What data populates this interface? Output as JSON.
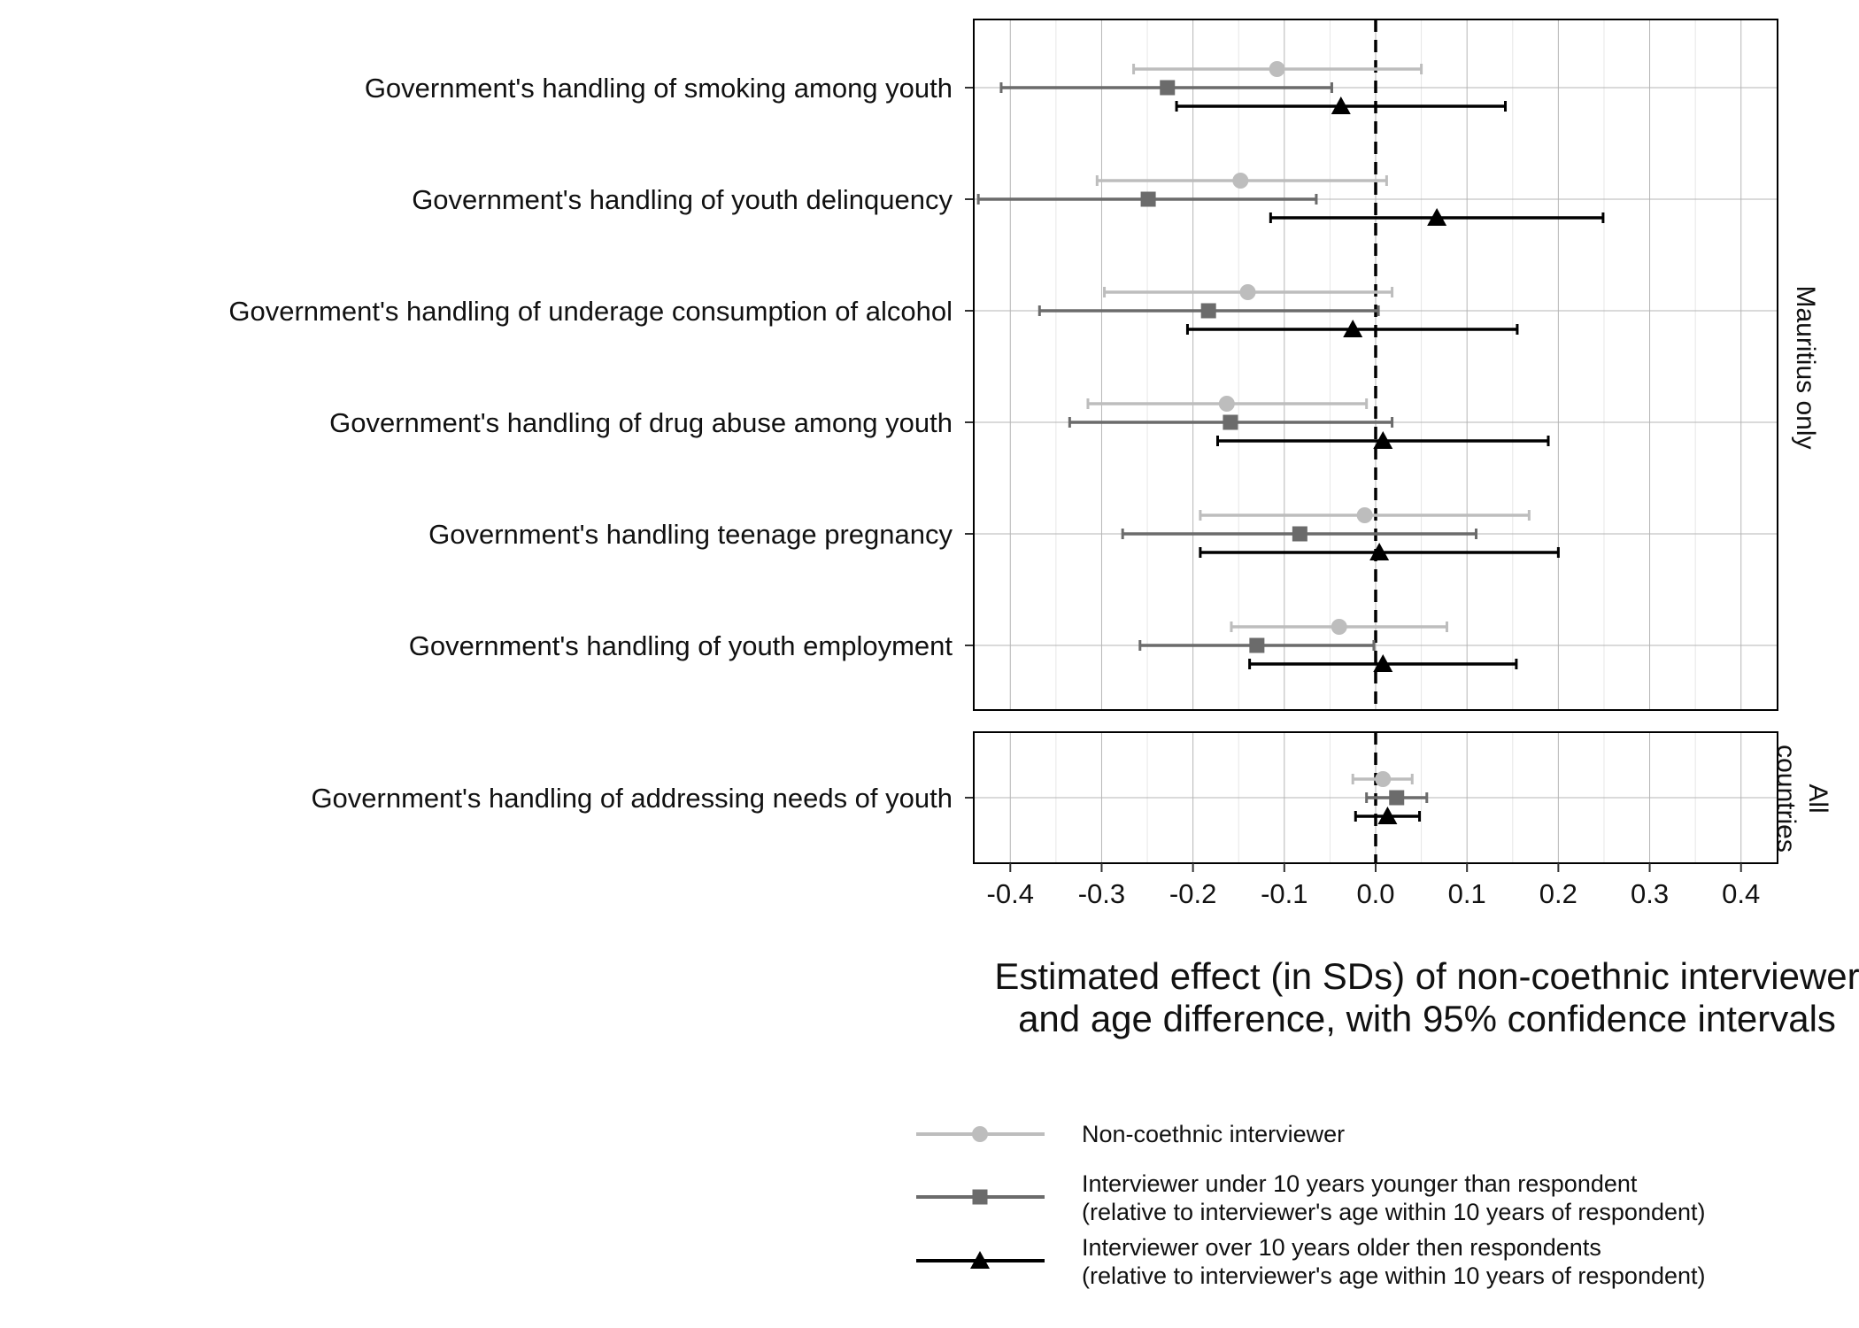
{
  "chart_data": {
    "type": "forest",
    "xlabel": [
      "Estimated effect (in SDs) of non-coethnic interviewer",
      "and age difference, with 95% confidence intervals"
    ],
    "xlim": [
      -0.44,
      0.44
    ],
    "xticks": [
      -0.4,
      -0.3,
      -0.2,
      -0.1,
      0.0,
      0.1,
      0.2,
      0.3,
      0.4
    ],
    "xtick_labels": [
      "-0.4",
      "-0.3",
      "-0.2",
      "-0.1",
      "0.0",
      "0.1",
      "0.2",
      "0.3",
      "0.4"
    ],
    "reference_line": 0,
    "grid": true,
    "legend_position": "bottom",
    "series": [
      {
        "name": "Non-coethnic interviewer",
        "name_line2": "",
        "marker": "circle",
        "color": "#bdbdbd"
      },
      {
        "name": "Interviewer under 10 years younger than respondent",
        "name_line2": "(relative to interviewer's age within 10 years of respondent)",
        "marker": "square",
        "color": "#6b6b6b"
      },
      {
        "name": "Interviewer over 10 years older then respondents",
        "name_line2": "(relative to interviewer's age within 10 years of respondent)",
        "marker": "triangle",
        "color": "#000000"
      }
    ],
    "panels": [
      {
        "strip": [
          "Mauritius only"
        ],
        "rows": [
          {
            "label": "Government's handling of smoking among youth",
            "estimates": [
              {
                "est": -0.108,
                "lo": -0.265,
                "hi": 0.05
              },
              {
                "est": -0.228,
                "lo": -0.41,
                "hi": -0.048
              },
              {
                "est": -0.038,
                "lo": -0.218,
                "hi": 0.142
              }
            ]
          },
          {
            "label": "Government's handling of youth delinquency",
            "estimates": [
              {
                "est": -0.148,
                "lo": -0.305,
                "hi": 0.012
              },
              {
                "est": -0.249,
                "lo": -0.435,
                "hi": -0.065
              },
              {
                "est": 0.067,
                "lo": -0.115,
                "hi": 0.249
              }
            ]
          },
          {
            "label": "Government's handling of underage consumption of alcohol",
            "estimates": [
              {
                "est": -0.14,
                "lo": -0.297,
                "hi": 0.018
              },
              {
                "est": -0.183,
                "lo": -0.368,
                "hi": 0.003
              },
              {
                "est": -0.025,
                "lo": -0.206,
                "hi": 0.155
              }
            ]
          },
          {
            "label": "Government's handling of drug abuse among youth",
            "estimates": [
              {
                "est": -0.163,
                "lo": -0.315,
                "hi": -0.01
              },
              {
                "est": -0.159,
                "lo": -0.335,
                "hi": 0.018
              },
              {
                "est": 0.008,
                "lo": -0.173,
                "hi": 0.189
              }
            ]
          },
          {
            "label": "Government's handling teenage pregnancy",
            "estimates": [
              {
                "est": -0.012,
                "lo": -0.192,
                "hi": 0.168
              },
              {
                "est": -0.083,
                "lo": -0.277,
                "hi": 0.11
              },
              {
                "est": 0.004,
                "lo": -0.192,
                "hi": 0.2
              }
            ]
          },
          {
            "label": "Government's handling of youth employment",
            "estimates": [
              {
                "est": -0.04,
                "lo": -0.158,
                "hi": 0.078
              },
              {
                "est": -0.13,
                "lo": -0.258,
                "hi": -0.002
              },
              {
                "est": 0.008,
                "lo": -0.138,
                "hi": 0.154
              }
            ]
          }
        ]
      },
      {
        "strip": [
          "All",
          "countries"
        ],
        "rows": [
          {
            "label": "Government's handling of addressing needs of youth",
            "estimates": [
              {
                "est": 0.008,
                "lo": -0.025,
                "hi": 0.04
              },
              {
                "est": 0.023,
                "lo": -0.01,
                "hi": 0.056
              },
              {
                "est": 0.013,
                "lo": -0.022,
                "hi": 0.048
              }
            ]
          }
        ]
      }
    ]
  }
}
